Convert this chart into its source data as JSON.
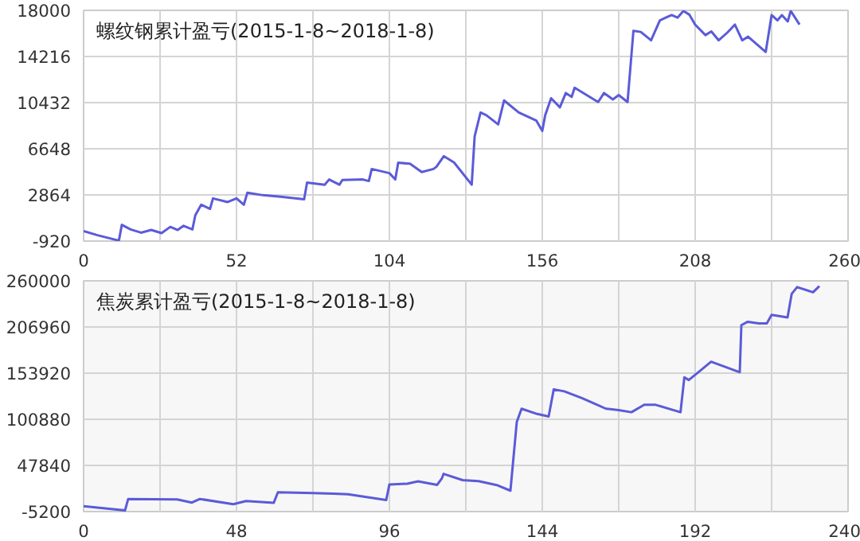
{
  "chart_data": [
    {
      "type": "line",
      "title": "螺纹钢累计盈亏(2015-1-8~2018-1-8)",
      "grid": true,
      "xlim": [
        0,
        260
      ],
      "ylim": [
        -920,
        18000
      ],
      "xticks": [
        0,
        {
          "value": 26,
          "label": null
        },
        52,
        {
          "value": 78,
          "label": null
        },
        104,
        {
          "value": 130,
          "label": null
        },
        156,
        {
          "value": 182,
          "label": null
        },
        208,
        {
          "value": 234,
          "label": null
        },
        260
      ],
      "yticks": [
        -920,
        2864,
        6648,
        10432,
        14216,
        18000
      ],
      "series": [
        {
          "color": "#5b5bd8",
          "x": [
            0,
            4.7,
            12,
            13,
            16,
            19.5,
            23,
            26.5,
            29.5,
            32,
            34,
            37,
            38,
            40,
            43,
            44,
            49,
            52,
            54.5,
            55.7,
            61,
            67,
            75,
            76,
            82,
            83.5,
            87,
            88,
            95,
            97,
            98,
            104,
            106,
            107,
            111,
            115,
            119,
            120,
            122.5,
            126,
            132,
            133,
            135,
            137,
            141,
            143,
            148,
            154,
            156,
            157,
            159,
            162,
            164,
            166,
            167,
            170,
            175,
            177,
            180,
            182,
            185,
            187,
            189.5,
            193,
            196,
            198,
            200,
            202,
            204,
            206,
            208,
            211.5,
            213.5,
            216,
            219,
            221.5,
            224,
            226,
            232,
            234,
            236,
            237.5,
            239.5,
            240.5,
            243.5
          ],
          "values": [
            -105,
            -440,
            -880,
            410,
            35,
            -230,
            -10,
            -270,
            245,
            -10,
            330,
            35,
            1200,
            2060,
            1720,
            2580,
            2280,
            2580,
            2060,
            3050,
            2840,
            2710,
            2500,
            3880,
            3700,
            4130,
            3700,
            4090,
            4130,
            4000,
            4990,
            4650,
            4130,
            5510,
            5420,
            4740,
            4990,
            5170,
            6040,
            5520,
            3700,
            7670,
            9620,
            9400,
            8650,
            10610,
            9620,
            8950,
            8110,
            9400,
            10790,
            10050,
            11220,
            10900,
            11650,
            11220,
            10480,
            11220,
            10690,
            11050,
            10480,
            16320,
            16230,
            15540,
            17180,
            17400,
            17610,
            17400,
            17950,
            17650,
            16830,
            15970,
            16270,
            15540,
            16190,
            16830,
            15540,
            15840,
            14590,
            17610,
            17180,
            17610,
            17090,
            17950,
            16830
          ]
        }
      ]
    },
    {
      "type": "line",
      "title": "焦炭累计盈亏(2015-1-8~2018-1-8)",
      "grid": true,
      "xlim": [
        0,
        240
      ],
      "ylim": [
        -5200,
        260000
      ],
      "xticks": [
        0,
        {
          "value": 24,
          "label": null
        },
        48,
        {
          "value": 72,
          "label": null
        },
        96,
        {
          "value": 120,
          "label": null
        },
        144,
        {
          "value": 168,
          "label": null
        },
        192,
        {
          "value": 216,
          "label": null
        },
        240
      ],
      "yticks": [
        -5200,
        47840,
        100880,
        153920,
        206960,
        260000
      ],
      "series": [
        {
          "color": "#5b5bd8",
          "x": [
            0,
            13,
            14,
            29.4,
            34,
            36.5,
            47,
            51,
            59.7,
            61,
            72,
            78.5,
            83,
            95,
            96,
            101.6,
            105,
            111,
            112.5,
            113,
            119,
            124,
            130,
            134,
            136,
            137.5,
            142.4,
            146,
            147.6,
            150.9,
            156.6,
            164,
            168,
            172,
            176,
            179.6,
            187.4,
            188.6,
            190,
            193,
            197,
            206,
            206.5,
            208.5,
            212,
            214.5,
            216,
            221,
            222.3,
            224,
            229,
            231
          ],
          "values": [
            1000,
            -3900,
            9300,
            8700,
            5100,
            9300,
            3300,
            6900,
            4900,
            17000,
            16000,
            15400,
            14600,
            8000,
            26000,
            26800,
            29600,
            25500,
            33200,
            38100,
            30900,
            29700,
            24900,
            18800,
            98000,
            113000,
            107000,
            104100,
            135300,
            133000,
            125000,
            113000,
            111300,
            109000,
            117500,
            117500,
            109000,
            149000,
            146000,
            155000,
            167000,
            155000,
            209000,
            213000,
            211000,
            211000,
            221000,
            218000,
            245000,
            252800,
            246800,
            254000
          ]
        }
      ]
    }
  ]
}
